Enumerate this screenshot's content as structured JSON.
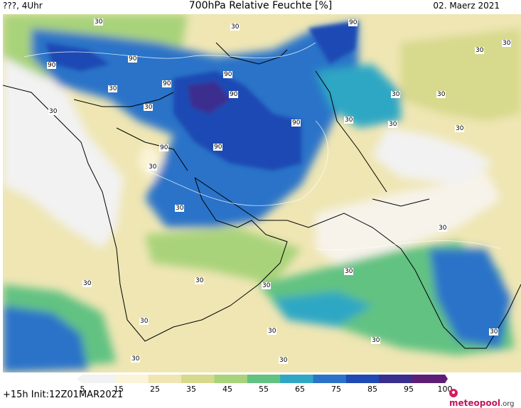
{
  "header": {
    "left": "???, 4Uhr",
    "title": "700hPa Relative Feuchte [%]",
    "date": "02. Maerz 2021"
  },
  "contour_labels": [
    "30",
    "90"
  ],
  "colorbar": {
    "ticks": [
      "5",
      "15",
      "25",
      "35",
      "45",
      "55",
      "65",
      "75",
      "85",
      "95",
      "100"
    ],
    "colors": [
      "#f2f2f2",
      "#fbf4d8",
      "#efe6b4",
      "#d7d98c",
      "#a9d37a",
      "#62c282",
      "#2fa7c4",
      "#2b73c8",
      "#1f49b3",
      "#3a2e8e",
      "#5d1e78"
    ]
  },
  "footer": {
    "init": "+15h Init:12Z01MAR2021"
  },
  "logo": {
    "name": "meteopool",
    "tld": ".org"
  }
}
